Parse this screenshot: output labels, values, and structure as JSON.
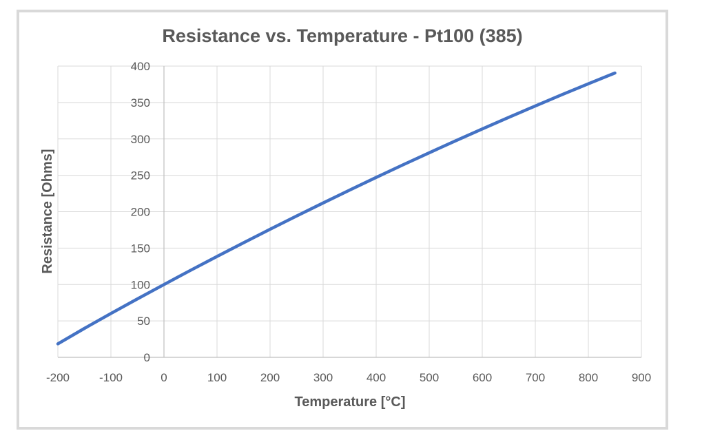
{
  "chart_data": {
    "type": "line",
    "title": "Resistance vs. Temperature - Pt100 (385)",
    "xlabel": "Temperature [°C]",
    "ylabel": "Resistance [Ohms]",
    "xlim": [
      -200,
      900
    ],
    "ylim": [
      0,
      400
    ],
    "x_ticks": [
      -200,
      -100,
      0,
      100,
      200,
      300,
      400,
      500,
      600,
      700,
      800,
      900
    ],
    "y_ticks": [
      0,
      50,
      100,
      150,
      200,
      250,
      300,
      350,
      400
    ],
    "grid": true,
    "legend": "none",
    "line_color": "#4472c4",
    "series": [
      {
        "x": [
          -200,
          -150,
          -100,
          -50,
          0,
          50,
          100,
          150,
          200,
          250,
          300,
          350,
          400,
          450,
          500,
          550,
          600,
          650,
          700,
          750,
          800,
          850
        ],
        "y": [
          18.52,
          39.72,
          60.26,
          80.31,
          100.0,
          119.4,
          138.51,
          157.33,
          175.86,
          194.1,
          212.05,
          229.72,
          247.09,
          264.18,
          280.98,
          297.49,
          313.71,
          329.64,
          345.28,
          360.64,
          375.7,
          390.48
        ]
      }
    ]
  }
}
